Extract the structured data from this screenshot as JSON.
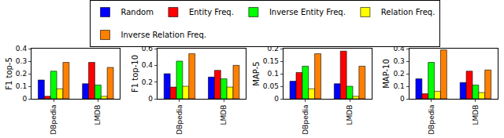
{
  "chart_data": [
    {
      "type": "bar",
      "y_label": "F1 top-5",
      "categories": [
        "DBpedia",
        "LMDB"
      ],
      "ylim": [
        0,
        0.4
      ],
      "yticks": [
        0,
        0.1,
        0.2,
        0.3,
        0.4
      ],
      "legend": "top",
      "series": [
        {
          "name": "Random",
          "color": "#0000ff",
          "values": [
            0.15,
            0.12
          ]
        },
        {
          "name": "Entity Freq.",
          "color": "#ff0000",
          "values": [
            0.02,
            0.29
          ]
        },
        {
          "name": "Inverse Entity Freq.",
          "color": "#00ff00",
          "values": [
            0.22,
            0.11
          ]
        },
        {
          "name": "Relation Freq.",
          "color": "#ffff00",
          "values": [
            0.08,
            0.02
          ]
        },
        {
          "name": "Inverse Relation Freq.",
          "color": "#ff8000",
          "values": [
            0.29,
            0.25
          ]
        }
      ]
    },
    {
      "type": "bar",
      "y_label": "F1 top-10",
      "categories": [
        "DBpedia",
        "LMDB"
      ],
      "ylim": [
        0,
        0.6
      ],
      "yticks": [
        0,
        0.2,
        0.4,
        0.6
      ],
      "series": [
        {
          "name": "Random",
          "color": "#0000ff",
          "values": [
            0.3,
            0.26
          ]
        },
        {
          "name": "Entity Freq.",
          "color": "#ff0000",
          "values": [
            0.14,
            0.34
          ]
        },
        {
          "name": "Inverse Entity Freq.",
          "color": "#00ff00",
          "values": [
            0.45,
            0.24
          ]
        },
        {
          "name": "Relation Freq.",
          "color": "#ffff00",
          "values": [
            0.15,
            0.14
          ]
        },
        {
          "name": "Inverse Relation Freq.",
          "color": "#ff8000",
          "values": [
            0.54,
            0.4
          ]
        }
      ]
    },
    {
      "type": "bar",
      "y_label": "MAP-5",
      "categories": [
        "DBpedia",
        "LMDB"
      ],
      "ylim": [
        0,
        0.2
      ],
      "yticks": [
        0,
        0.05,
        0.1,
        0.15,
        0.2
      ],
      "series": [
        {
          "name": "Random",
          "color": "#0000ff",
          "values": [
            0.07,
            0.06
          ]
        },
        {
          "name": "Entity Freq.",
          "color": "#ff0000",
          "values": [
            0.105,
            0.19
          ]
        },
        {
          "name": "Inverse Entity Freq.",
          "color": "#00ff00",
          "values": [
            0.13,
            0.05
          ]
        },
        {
          "name": "Relation Freq.",
          "color": "#ffff00",
          "values": [
            0.04,
            0.01
          ]
        },
        {
          "name": "Inverse Relation Freq.",
          "color": "#ff8000",
          "values": [
            0.18,
            0.13
          ]
        }
      ]
    },
    {
      "type": "bar",
      "y_label": "MAP-10",
      "categories": [
        "DBpedia",
        "LMDB"
      ],
      "ylim": [
        0,
        0.4
      ],
      "yticks": [
        0,
        0.1,
        0.2,
        0.3,
        0.4
      ],
      "series": [
        {
          "name": "Random",
          "color": "#0000ff",
          "values": [
            0.16,
            0.13
          ]
        },
        {
          "name": "Entity Freq.",
          "color": "#ff0000",
          "values": [
            0.04,
            0.22
          ]
        },
        {
          "name": "Inverse Entity Freq.",
          "color": "#00ff00",
          "values": [
            0.29,
            0.11
          ]
        },
        {
          "name": "Relation Freq.",
          "color": "#ffff00",
          "values": [
            0.06,
            0.05
          ]
        },
        {
          "name": "Inverse Relation Freq.",
          "color": "#ff8000",
          "values": [
            0.39,
            0.23
          ]
        }
      ]
    }
  ]
}
